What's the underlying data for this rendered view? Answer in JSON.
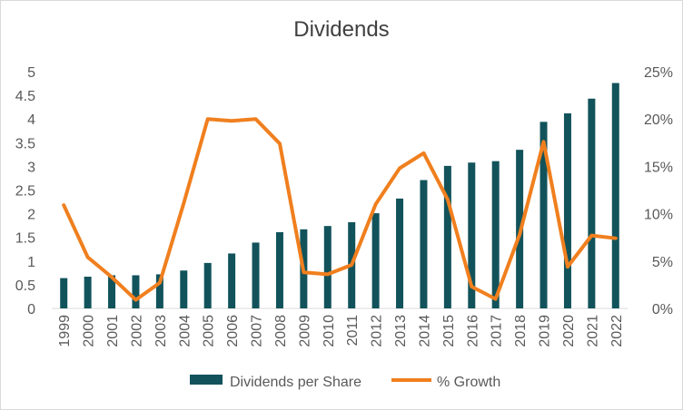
{
  "chart_data": {
    "type": "bar+line",
    "title": "Dividends",
    "categories": [
      "1999",
      "2000",
      "2001",
      "2002",
      "2003",
      "2004",
      "2005",
      "2006",
      "2007",
      "2008",
      "2009",
      "2010",
      "2011",
      "2012",
      "2013",
      "2014",
      "2015",
      "2016",
      "2017",
      "2018",
      "2019",
      "2020",
      "2021",
      "2022"
    ],
    "series": [
      {
        "name": "Dividends per Share",
        "type": "bar",
        "axis": "left",
        "color": "#12535b",
        "values": [
          0.64,
          0.67,
          0.7,
          0.7,
          0.72,
          0.8,
          0.96,
          1.16,
          1.39,
          1.61,
          1.67,
          1.74,
          1.82,
          2.01,
          2.32,
          2.71,
          3.01,
          3.08,
          3.11,
          3.35,
          3.94,
          4.12,
          4.43,
          4.76
        ]
      },
      {
        "name": "% Growth",
        "type": "line",
        "axis": "right",
        "color": "#f07f1e",
        "values": [
          0.109,
          0.054,
          0.033,
          0.009,
          0.027,
          0.111,
          0.2,
          0.198,
          0.2,
          0.174,
          0.038,
          0.036,
          0.046,
          0.11,
          0.148,
          0.164,
          0.115,
          0.023,
          0.01,
          0.078,
          0.176,
          0.044,
          0.077,
          0.074
        ]
      }
    ],
    "y_left": {
      "min": 0,
      "max": 5,
      "ticks": [
        "0",
        "0.5",
        "1",
        "1.5",
        "2",
        "2.5",
        "3",
        "3.5",
        "4",
        "4.5",
        "5"
      ]
    },
    "y_right": {
      "min": 0,
      "max": 0.25,
      "ticks": [
        "0%",
        "5%",
        "10%",
        "15%",
        "20%",
        "25%"
      ]
    },
    "grid": false,
    "legend": "bottom"
  }
}
